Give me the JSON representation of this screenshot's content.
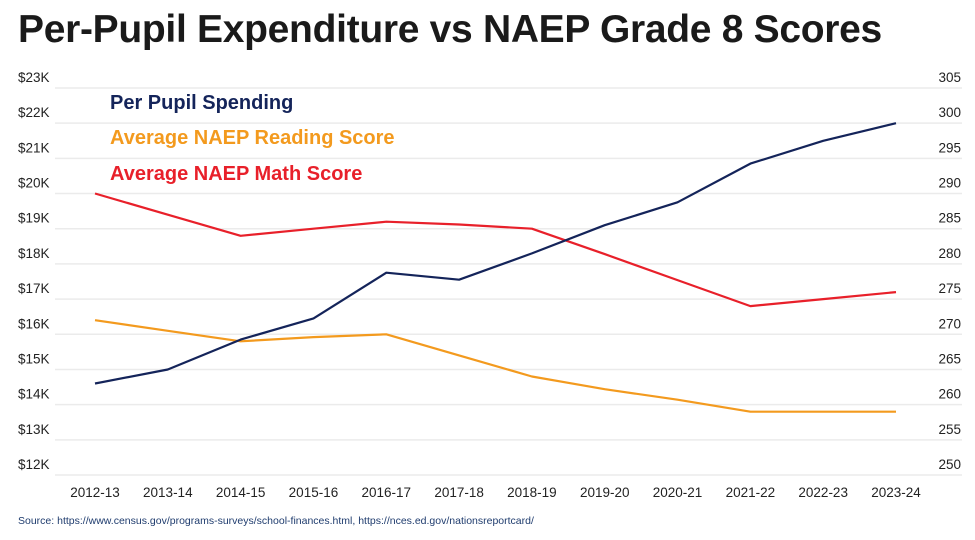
{
  "chart_data": {
    "type": "line",
    "title": "Per-Pupil Expenditure vs NAEP Grade 8 Scores",
    "source": "Source: https://www.census.gov/programs-surveys/school-finances.html, https://nces.ed.gov/nationsreportcard/",
    "categories": [
      "2012-13",
      "2013-14",
      "2014-15",
      "2015-16",
      "2016-17",
      "2017-18",
      "2018-19",
      "2019-20",
      "2020-21",
      "2021-22",
      "2022-23",
      "2023-24"
    ],
    "left_axis": {
      "label": "",
      "ylim": [
        12,
        23
      ],
      "unit": "thousands USD",
      "tick_labels": [
        "$23K",
        "$22K",
        "$21K",
        "$20K",
        "$19K",
        "$18K",
        "$17K",
        "$16K",
        "$15K",
        "$14K",
        "$13K",
        "$12K"
      ]
    },
    "right_axis": {
      "label": "",
      "ylim": [
        250,
        305
      ],
      "tick_labels": [
        "305",
        "300",
        "295",
        "290",
        "285",
        "280",
        "275",
        "270",
        "265",
        "260",
        "255",
        "250"
      ]
    },
    "grid": true,
    "legend_position": "top-left",
    "series": [
      {
        "name": "Per Pupil Spending",
        "axis": "left",
        "color": "#14245a",
        "values": [
          14.6,
          15.0,
          15.85,
          16.45,
          17.75,
          17.55,
          18.3,
          19.1,
          19.75,
          20.85,
          21.5,
          22.0
        ]
      },
      {
        "name": "Average NAEP Reading Score",
        "axis": "right",
        "color": "#f39a1e",
        "values": [
          272,
          270.5,
          269,
          269.6,
          270,
          267,
          264,
          262.2,
          260.7,
          259,
          259,
          259
        ]
      },
      {
        "name": "Average NAEP Math Score",
        "axis": "right",
        "color": "#e8202a",
        "values": [
          290,
          287,
          284,
          285,
          286,
          285.6,
          285,
          281.4,
          277.7,
          274,
          275,
          276
        ]
      }
    ]
  }
}
